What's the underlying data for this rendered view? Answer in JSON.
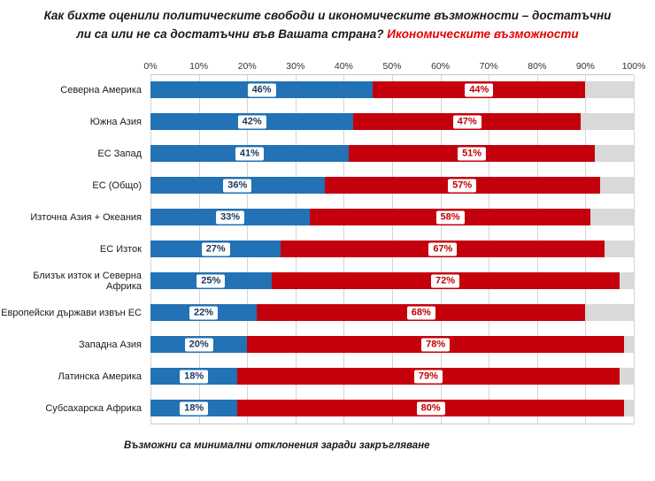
{
  "title": {
    "line1": "Как бихте оценили политическите свободи и икономическите възможности – достатъчни",
    "line2_black": "ли са или не са достатъчни във Вашата страна? ",
    "line2_red": "Икономическите възможности"
  },
  "footnote": "Възможни са минимални отклонения заради закръгляване",
  "colors": {
    "blue": "#2272b5",
    "red": "#c4000c",
    "gray": "#d9d9d9",
    "title_red": "#e60000"
  },
  "chart_data": {
    "type": "bar",
    "orientation": "horizontal",
    "stacked": true,
    "grid": true,
    "legend": "none",
    "xlim": [
      0,
      100
    ],
    "x_ticks": [
      "0%",
      "10%",
      "20%",
      "30%",
      "40%",
      "50%",
      "60%",
      "70%",
      "80%",
      "90%",
      "100%"
    ],
    "categories": [
      "Северна Америка",
      "Южна Азия",
      "ЕС Запад",
      "ЕС (Общо)",
      "Източна Азия + Океания",
      "ЕС Изток",
      "Близък изток и Северна Африка",
      "Европейски държави извън ЕС",
      "Западна Азия",
      "Латинска Америка",
      "Субсахарска Африка"
    ],
    "series": [
      {
        "name": "blue",
        "color": "#2272b5",
        "values": [
          46,
          42,
          41,
          36,
          33,
          27,
          25,
          22,
          20,
          18,
          18
        ],
        "labels_shown": true
      },
      {
        "name": "red",
        "color": "#c4000c",
        "values": [
          44,
          47,
          51,
          57,
          58,
          67,
          72,
          68,
          78,
          79,
          80
        ],
        "labels_shown": true
      },
      {
        "name": "gray",
        "color": "#d9d9d9",
        "values": [
          10,
          11,
          8,
          7,
          9,
          6,
          3,
          10,
          2,
          3,
          2
        ],
        "labels_shown": false
      }
    ]
  }
}
